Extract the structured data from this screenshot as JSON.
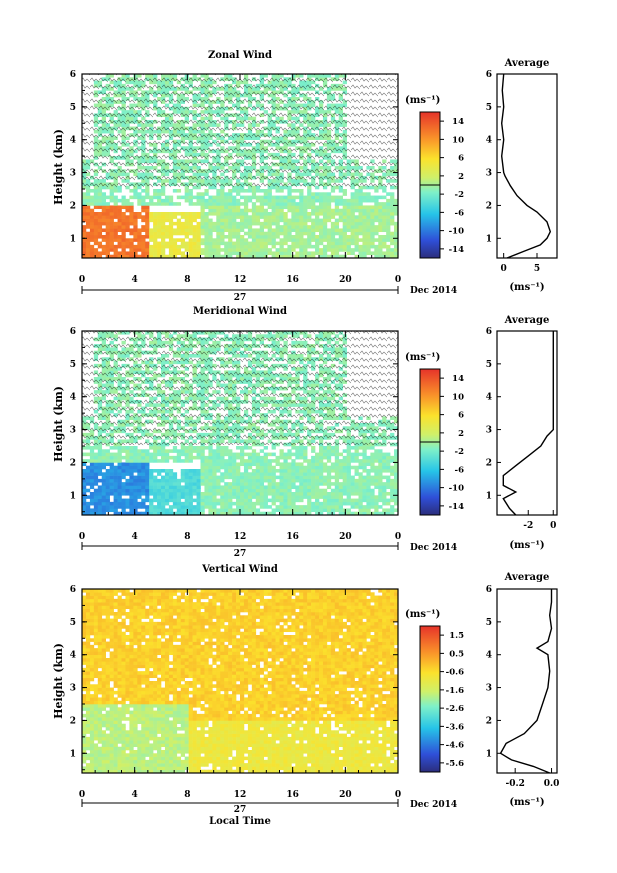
{
  "chart_data": [
    {
      "type": "heatmap",
      "title": "Zonal Wind",
      "ylabel": "Height (km)",
      "ylim": [
        0.4,
        6
      ],
      "yticks": [
        1,
        2,
        3,
        4,
        5,
        6
      ],
      "xlim": [
        0,
        24
      ],
      "xticks": [
        "0",
        "4",
        "8",
        "12",
        "16",
        "20",
        "0"
      ],
      "date_day": "27",
      "date_label": "Dec 2014",
      "colorbar": {
        "unit_label": "(ms⁻¹)",
        "ticks": [
          "14",
          "10",
          "6",
          "2",
          "-2",
          "-6",
          "-10",
          "-14"
        ],
        "range": [
          -16,
          16
        ]
      },
      "regions": [
        {
          "x": [
            0,
            5
          ],
          "y": [
            0.4,
            2.3
          ],
          "value": 12
        },
        {
          "x": [
            0,
            4
          ],
          "y": [
            2.3,
            2.8
          ],
          "value": 6
        },
        {
          "x": [
            5,
            9
          ],
          "y": [
            0.4,
            1.8
          ],
          "value": 4
        },
        {
          "x": [
            9,
            24
          ],
          "y": [
            0.4,
            2.0
          ],
          "value": 0
        },
        {
          "x": [
            0,
            24
          ],
          "y": [
            2.0,
            3.4
          ],
          "value": -1
        },
        {
          "x": [
            1,
            20
          ],
          "y": [
            3.4,
            6.0
          ],
          "value": -1
        }
      ],
      "average": {
        "title": "Average",
        "xlabel": "(ms⁻¹)",
        "xlim": [
          -1,
          8
        ],
        "xticks": [
          "0",
          "5"
        ],
        "height": [
          0.4,
          0.6,
          0.8,
          1.0,
          1.2,
          1.5,
          1.8,
          2.0,
          2.3,
          2.6,
          2.9,
          3.0,
          3.5,
          4.0,
          4.5,
          5.0,
          5.5,
          6.0
        ],
        "value": [
          0.5,
          3.0,
          5.5,
          6.5,
          7.0,
          6.5,
          5.0,
          3.5,
          2.0,
          1.0,
          0.2,
          0.0,
          -0.3,
          0.0,
          -0.3,
          0.0,
          -0.2,
          0.0
        ]
      }
    },
    {
      "type": "heatmap",
      "title": "Meridional Wind",
      "ylabel": "Height (km)",
      "ylim": [
        0.4,
        6
      ],
      "yticks": [
        1,
        2,
        3,
        4,
        5,
        6
      ],
      "xlim": [
        0,
        24
      ],
      "xticks": [
        "0",
        "4",
        "8",
        "12",
        "16",
        "20",
        "0"
      ],
      "date_day": "27",
      "date_label": "Dec 2014",
      "colorbar": {
        "unit_label": "(ms⁻¹)",
        "ticks": [
          "14",
          "10",
          "6",
          "2",
          "-2",
          "-6",
          "-10",
          "-14"
        ],
        "range": [
          -16,
          16
        ]
      },
      "regions": [
        {
          "x": [
            0,
            5
          ],
          "y": [
            0.4,
            2.6
          ],
          "value": -9
        },
        {
          "x": [
            5,
            9
          ],
          "y": [
            0.4,
            1.8
          ],
          "value": -4
        },
        {
          "x": [
            9,
            24
          ],
          "y": [
            0.4,
            2.0
          ],
          "value": -1
        },
        {
          "x": [
            0,
            24
          ],
          "y": [
            2.0,
            3.4
          ],
          "value": -1
        },
        {
          "x": [
            1,
            20
          ],
          "y": [
            3.4,
            6.0
          ],
          "value": -1
        }
      ],
      "average": {
        "title": "Average",
        "xlabel": "(ms⁻¹)",
        "xlim": [
          -4.5,
          0.3
        ],
        "xticks": [
          "-2",
          "0"
        ],
        "height": [
          0.4,
          0.6,
          0.9,
          1.1,
          1.3,
          1.6,
          1.9,
          2.2,
          2.5,
          2.8,
          3.0,
          3.5,
          4.0,
          4.5,
          5.0,
          5.5,
          6.0
        ],
        "value": [
          -3.0,
          -3.5,
          -4.0,
          -3.0,
          -4.0,
          -4.0,
          -3.0,
          -2.0,
          -1.0,
          -0.5,
          0.0,
          0.0,
          0.0,
          0.0,
          0.0,
          0.0,
          0.0
        ]
      }
    },
    {
      "type": "heatmap",
      "title": "Vertical Wind",
      "ylabel": "Height (km)",
      "ylim": [
        0.4,
        6
      ],
      "yticks": [
        1,
        2,
        3,
        4,
        5,
        6
      ],
      "xlim": [
        0,
        24
      ],
      "xticks": [
        "0",
        "4",
        "8",
        "12",
        "16",
        "20",
        "0"
      ],
      "date_day": "27",
      "date_label": "Dec 2014",
      "xlabel": "Local Time",
      "colorbar": {
        "unit_label": "(ms⁻¹)",
        "ticks": [
          "1.5",
          "0.5",
          "-0.6",
          "-1.6",
          "-2.6",
          "-3.6",
          "-4.6",
          "-5.6"
        ],
        "range": [
          -6.0,
          2.0
        ]
      },
      "regions": [
        {
          "x": [
            0,
            24
          ],
          "y": [
            0.4,
            6.0
          ],
          "value": -0.3
        },
        {
          "x": [
            0,
            8
          ],
          "y": [
            0.4,
            2.5
          ],
          "value": -1.8
        },
        {
          "x": [
            8,
            24
          ],
          "y": [
            0.4,
            2.0
          ],
          "value": -0.9
        }
      ],
      "average": {
        "title": "Average",
        "xlabel": "(ms⁻¹)",
        "xlim": [
          -0.3,
          0.03
        ],
        "xticks": [
          "-0.2",
          "0.0"
        ],
        "height": [
          0.4,
          0.6,
          0.8,
          1.0,
          1.3,
          1.6,
          2.0,
          2.5,
          3.0,
          3.5,
          4.0,
          4.2,
          4.4,
          4.8,
          5.2,
          5.6,
          6.0
        ],
        "value": [
          -0.01,
          -0.1,
          -0.22,
          -0.28,
          -0.25,
          -0.15,
          -0.08,
          -0.05,
          -0.02,
          -0.01,
          -0.02,
          -0.08,
          -0.02,
          0.0,
          -0.01,
          0.0,
          0.0
        ]
      }
    }
  ]
}
